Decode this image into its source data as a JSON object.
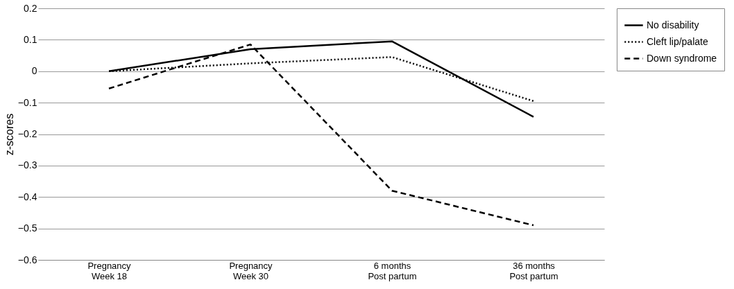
{
  "chart_data": {
    "type": "line",
    "ylabel": "z-scores",
    "categories": [
      "Pregnancy\nWeek 18",
      "Pregnancy\nWeek 30",
      "6 months\nPost partum",
      "36 months\nPost partum"
    ],
    "series": [
      {
        "name": "No disability",
        "color": "#000000",
        "line_style": "solid",
        "values": [
          0.0,
          0.07,
          0.095,
          -0.145
        ]
      },
      {
        "name": "Cleft lip/palate",
        "color": "#000000",
        "line_style": "dotted",
        "values": [
          0.0,
          0.025,
          0.045,
          -0.095
        ]
      },
      {
        "name": "Down syndrome",
        "color": "#000000",
        "line_style": "dashed",
        "values": [
          -0.055,
          0.085,
          -0.38,
          -0.49
        ]
      }
    ],
    "ylim": [
      -0.6,
      0.2
    ],
    "yticks": [
      -0.6,
      -0.5,
      -0.4,
      -0.3,
      -0.2,
      -0.1,
      0,
      0.1,
      0.2
    ],
    "grid": "y",
    "legend": "right",
    "marker": "none"
  }
}
